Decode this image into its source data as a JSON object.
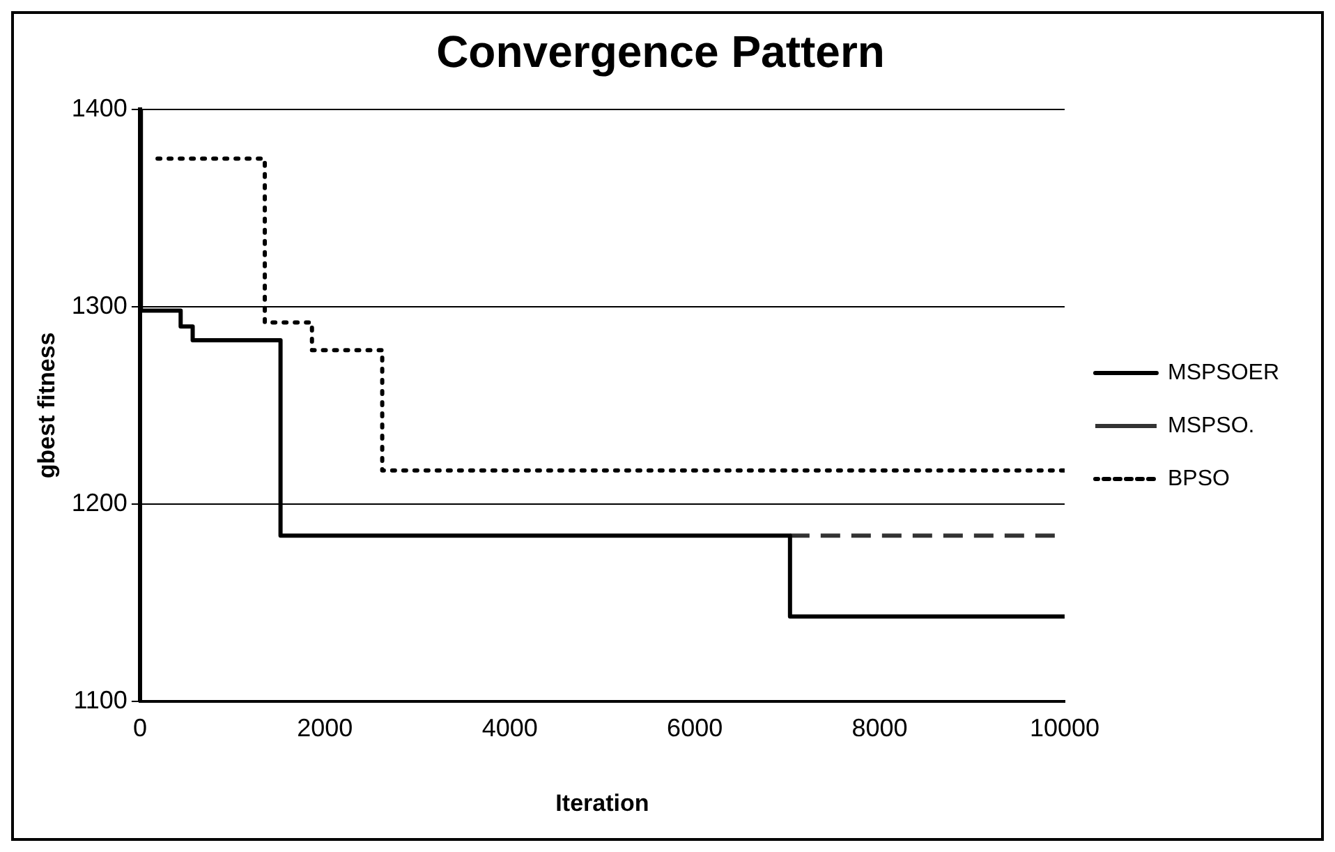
{
  "chart_data": {
    "type": "step",
    "title": "Convergence Pattern",
    "xlabel": "Iteration",
    "ylabel": "gbest fitness",
    "series": [
      {
        "name": "MSPSOER",
        "color": "#000000",
        "line_style": "solid",
        "x": [
          0,
          10,
          440,
          570,
          1520,
          7030,
          10000
        ],
        "values": [
          1400,
          1298,
          1290,
          1283,
          1184,
          1143,
          1143
        ]
      },
      {
        "name": "MSPSO.",
        "color": "#333333",
        "line_style": "dashed",
        "x": [
          7030,
          10000
        ],
        "values": [
          1184,
          1184
        ]
      },
      {
        "name": "BPSO",
        "color": "#000000",
        "line_style": "dotted",
        "x": [
          190,
          1350,
          1860,
          2620,
          10000
        ],
        "values": [
          1375,
          1292,
          1278,
          1217,
          1217
        ]
      }
    ],
    "xlim": [
      0,
      10000
    ],
    "xticks": [
      0,
      2000,
      4000,
      6000,
      8000,
      10000
    ],
    "ylim": [
      1100,
      1400
    ],
    "yticks": [
      1100,
      1200,
      1300,
      1400
    ],
    "grid": "y",
    "legend": "right",
    "marker": "none"
  }
}
